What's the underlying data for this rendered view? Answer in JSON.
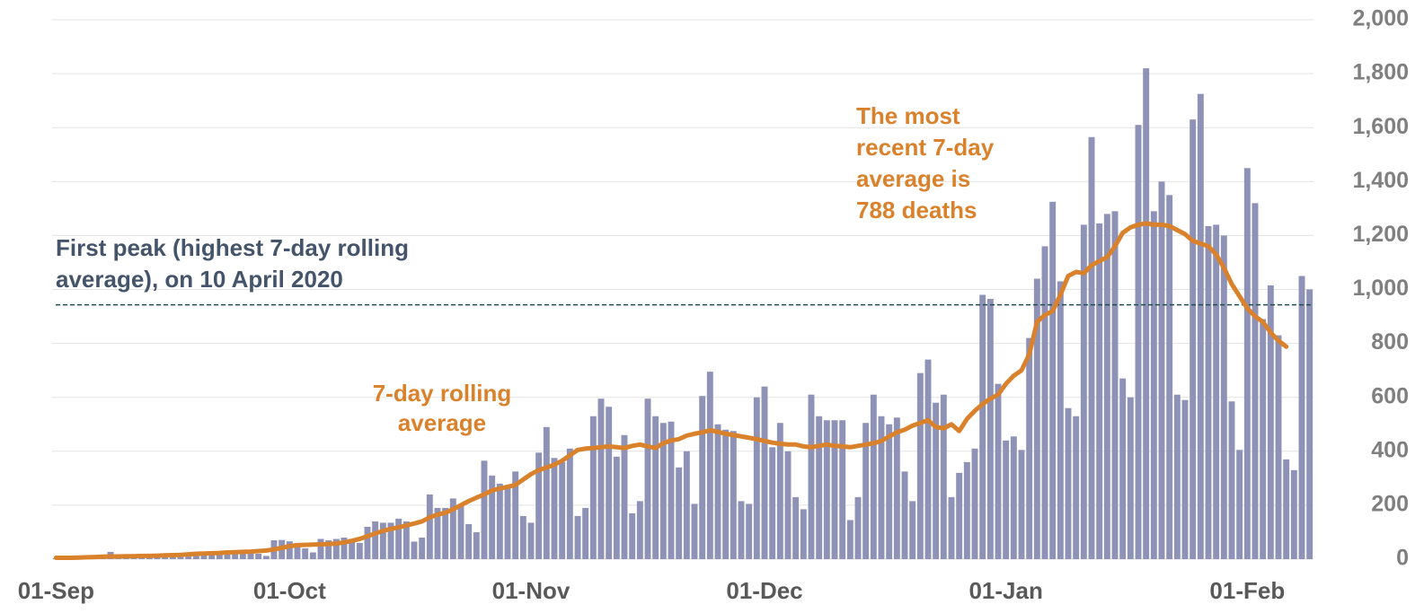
{
  "chart_data": {
    "type": "bar",
    "categories": [
      "01-Sep",
      null,
      null,
      null,
      null,
      null,
      null,
      null,
      null,
      null,
      null,
      null,
      null,
      null,
      null,
      null,
      null,
      null,
      null,
      null,
      null,
      null,
      null,
      null,
      null,
      null,
      null,
      null,
      null,
      null,
      "01-Oct",
      null,
      null,
      null,
      null,
      null,
      null,
      null,
      null,
      null,
      null,
      null,
      null,
      null,
      null,
      null,
      null,
      null,
      null,
      null,
      null,
      null,
      null,
      null,
      null,
      null,
      null,
      null,
      null,
      null,
      null,
      "01-Nov",
      null,
      null,
      null,
      null,
      null,
      null,
      null,
      null,
      null,
      null,
      null,
      null,
      null,
      null,
      null,
      null,
      null,
      null,
      null,
      null,
      null,
      null,
      null,
      null,
      null,
      null,
      null,
      null,
      null,
      "01-Dec",
      null,
      null,
      null,
      null,
      null,
      null,
      null,
      null,
      null,
      null,
      null,
      null,
      null,
      null,
      null,
      null,
      null,
      null,
      null,
      null,
      null,
      null,
      null,
      null,
      null,
      null,
      null,
      null,
      null,
      null,
      "01-Jan",
      null,
      null,
      null,
      null,
      null,
      null,
      null,
      null,
      null,
      null,
      null,
      null,
      null,
      null,
      null,
      null,
      null,
      null,
      null,
      null,
      null,
      null,
      null,
      null,
      null,
      null,
      null,
      null,
      null,
      null,
      "01-Feb",
      null,
      null,
      null,
      null,
      null,
      null,
      null,
      null
    ],
    "series": [
      {
        "type": "bar",
        "color": "#8e92b7",
        "values": [
          3,
          3,
          3,
          10,
          5,
          5,
          8,
          27,
          12,
          10,
          10,
          10,
          8,
          20,
          12,
          15,
          18,
          20,
          20,
          15,
          25,
          20,
          30,
          30,
          35,
          30,
          20,
          12,
          70,
          71,
          66,
          60,
          40,
          25,
          75,
          70,
          75,
          80,
          75,
          60,
          120,
          140,
          135,
          135,
          150,
          140,
          65,
          80,
          240,
          190,
          190,
          225,
          200,
          130,
          100,
          365,
          310,
          280,
          275,
          325,
          160,
          135,
          395,
          490,
          375,
          360,
          410,
          160,
          190,
          530,
          595,
          565,
          380,
          460,
          170,
          215,
          595,
          530,
          505,
          510,
          340,
          400,
          205,
          605,
          695,
          500,
          480,
          475,
          215,
          205,
          600,
          640,
          415,
          505,
          400,
          230,
          185,
          610,
          530,
          515,
          515,
          515,
          145,
          230,
          505,
          610,
          530,
          500,
          525,
          325,
          215,
          690,
          740,
          580,
          610,
          230,
          320,
          360,
          410,
          980,
          965,
          650,
          440,
          455,
          405,
          820,
          1040,
          1160,
          1325,
          1030,
          560,
          530,
          1240,
          1565,
          1245,
          1280,
          1290,
          670,
          600,
          1610,
          1820,
          1290,
          1400,
          1350,
          610,
          590,
          1630,
          1725,
          1235,
          1240,
          1200,
          585,
          405,
          1450,
          1320,
          890,
          1015,
          830,
          370,
          330,
          1050,
          1000
        ]
      },
      {
        "type": "line",
        "color": "#d9822b",
        "values": [
          5,
          5,
          5,
          6,
          7,
          8,
          9,
          10,
          10,
          11,
          11,
          12,
          12,
          13,
          14,
          15,
          16,
          18,
          20,
          21,
          22,
          23,
          25,
          26,
          27,
          28,
          30,
          32,
          36,
          42,
          48,
          52,
          53,
          54,
          55,
          56,
          58,
          62,
          68,
          75,
          85,
          95,
          105,
          112,
          118,
          125,
          132,
          140,
          155,
          165,
          172,
          185,
          200,
          215,
          228,
          240,
          255,
          262,
          268,
          275,
          295,
          315,
          330,
          340,
          350,
          365,
          385,
          405,
          410,
          412,
          415,
          418,
          415,
          412,
          420,
          425,
          418,
          412,
          430,
          440,
          445,
          458,
          465,
          470,
          478,
          472,
          465,
          460,
          455,
          450,
          445,
          438,
          432,
          428,
          425,
          425,
          418,
          415,
          420,
          425,
          420,
          418,
          415,
          420,
          425,
          430,
          438,
          455,
          470,
          480,
          495,
          505,
          515,
          490,
          485,
          500,
          475,
          520,
          550,
          575,
          595,
          610,
          650,
          680,
          700,
          760,
          880,
          905,
          920,
          980,
          1050,
          1065,
          1060,
          1090,
          1105,
          1120,
          1160,
          1210,
          1230,
          1240,
          1245,
          1240,
          1240,
          1235,
          1220,
          1205,
          1180,
          1170,
          1160,
          1130,
          1080,
          1020,
          975,
          930,
          900,
          880,
          840,
          810,
          788,
          null,
          null,
          null
        ]
      }
    ],
    "ylim": [
      0,
      2000
    ],
    "yticks": [
      0,
      200,
      400,
      600,
      800,
      {
        "value": 1000,
        "label": "1,000"
      },
      {
        "value": 1200,
        "label": "1,200"
      },
      {
        "value": 1400,
        "label": "1,400"
      },
      {
        "value": 1600,
        "label": "1,600"
      },
      {
        "value": 1800,
        "label": "1,800"
      },
      {
        "value": 2000,
        "label": "2,000"
      }
    ],
    "grid": true,
    "reference_line": {
      "value": 943,
      "color": "#1f4e4f"
    },
    "annotations": [
      {
        "lines": [
          "First peak (highest 7-day rolling",
          "average), on 10 April 2020"
        ],
        "color": "#44546a"
      },
      {
        "lines": [
          "7-day rolling",
          "average"
        ],
        "color": "#d9822b"
      },
      {
        "lines": [
          "The most",
          "recent 7-day",
          "average is",
          "788 deaths"
        ],
        "color": "#d9822b"
      }
    ]
  }
}
